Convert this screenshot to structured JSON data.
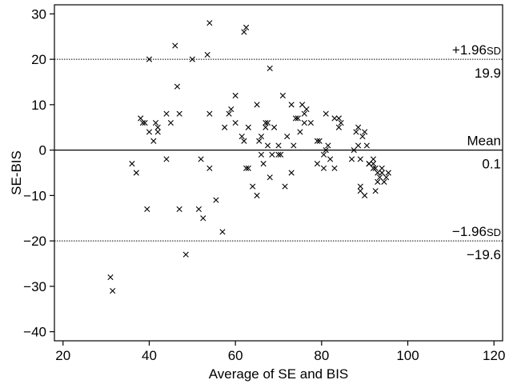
{
  "chart_data": {
    "type": "scatter",
    "title": "",
    "xlabel": "Average of SE and BIS",
    "ylabel": "SE-BIS",
    "xlim": [
      18,
      122
    ],
    "ylim": [
      -42,
      32
    ],
    "x_ticks": [
      20,
      40,
      60,
      80,
      100,
      120
    ],
    "y_ticks": [
      -40,
      -30,
      -20,
      -10,
      0,
      10,
      20,
      30
    ],
    "grid": false,
    "legend": "none",
    "marker": "x",
    "reference_lines": [
      {
        "name": "upper",
        "y": 20,
        "label_top": "+1.96",
        "label_top_suffix": "SD",
        "label_bottom": "19.9",
        "style": "dotted"
      },
      {
        "name": "mean",
        "y": 0,
        "label_top": "Mean",
        "label_top_suffix": "",
        "label_bottom": "0.1",
        "style": "solid"
      },
      {
        "name": "lower",
        "y": -20,
        "label_top": "−1.96",
        "label_top_suffix": "SD",
        "label_bottom": "−19.6",
        "style": "dotted"
      }
    ],
    "points": [
      [
        31,
        -28
      ],
      [
        31.5,
        -31
      ],
      [
        36,
        -3
      ],
      [
        37,
        -5
      ],
      [
        38,
        7
      ],
      [
        38.5,
        6
      ],
      [
        39,
        6
      ],
      [
        39.5,
        -13
      ],
      [
        40,
        20
      ],
      [
        40,
        4
      ],
      [
        41,
        2
      ],
      [
        41.5,
        6
      ],
      [
        42,
        4
      ],
      [
        42,
        5
      ],
      [
        44,
        8
      ],
      [
        44,
        -2
      ],
      [
        45,
        6
      ],
      [
        46,
        23
      ],
      [
        46.5,
        14
      ],
      [
        47,
        -13
      ],
      [
        47,
        8
      ],
      [
        48.5,
        -23
      ],
      [
        50,
        20
      ],
      [
        51.5,
        -13
      ],
      [
        52,
        -2
      ],
      [
        52.5,
        -15
      ],
      [
        53.5,
        21
      ],
      [
        54,
        28
      ],
      [
        54,
        8
      ],
      [
        54,
        -4
      ],
      [
        55.5,
        -11
      ],
      [
        57,
        -18
      ],
      [
        57.5,
        5
      ],
      [
        58.5,
        8
      ],
      [
        59,
        9
      ],
      [
        60,
        12
      ],
      [
        60,
        6
      ],
      [
        61.5,
        3
      ],
      [
        62,
        26
      ],
      [
        62,
        2
      ],
      [
        62.5,
        27
      ],
      [
        62.5,
        -4
      ],
      [
        63,
        -4
      ],
      [
        63,
        5
      ],
      [
        64,
        -8
      ],
      [
        65,
        -10
      ],
      [
        65,
        10
      ],
      [
        65.5,
        2
      ],
      [
        66,
        3
      ],
      [
        66,
        -1
      ],
      [
        66.5,
        -3
      ],
      [
        67,
        6
      ],
      [
        67,
        5
      ],
      [
        67.5,
        6
      ],
      [
        67.5,
        1
      ],
      [
        68,
        18
      ],
      [
        68,
        -6
      ],
      [
        68.5,
        -1
      ],
      [
        69,
        5
      ],
      [
        70,
        -1
      ],
      [
        70,
        1
      ],
      [
        70.5,
        -1
      ],
      [
        71,
        12
      ],
      [
        71.5,
        -8
      ],
      [
        72,
        3
      ],
      [
        73,
        -5
      ],
      [
        73,
        10
      ],
      [
        73.5,
        1
      ],
      [
        74,
        7
      ],
      [
        74.5,
        7
      ],
      [
        75,
        4
      ],
      [
        75.5,
        10
      ],
      [
        76,
        8
      ],
      [
        76,
        6
      ],
      [
        76.5,
        9
      ],
      [
        77.5,
        6
      ],
      [
        79,
        -3
      ],
      [
        79,
        2
      ],
      [
        79.5,
        2
      ],
      [
        80.5,
        -4
      ],
      [
        80.5,
        -1
      ],
      [
        81,
        0
      ],
      [
        81,
        8
      ],
      [
        81.5,
        1
      ],
      [
        82,
        -2
      ],
      [
        83,
        -4
      ],
      [
        83,
        7
      ],
      [
        84,
        7
      ],
      [
        84,
        5
      ],
      [
        84.5,
        6
      ],
      [
        87,
        -2
      ],
      [
        87.5,
        0
      ],
      [
        88,
        4
      ],
      [
        88.5,
        1
      ],
      [
        88.5,
        5
      ],
      [
        89,
        -9
      ],
      [
        89,
        -8
      ],
      [
        89,
        -2
      ],
      [
        89.5,
        3
      ],
      [
        90,
        4
      ],
      [
        90,
        -10
      ],
      [
        90.5,
        1
      ],
      [
        91,
        -3
      ],
      [
        91,
        -3
      ],
      [
        92,
        -4
      ],
      [
        92,
        -2
      ],
      [
        92.5,
        -4
      ],
      [
        92.5,
        -9
      ],
      [
        93,
        -5
      ],
      [
        93,
        -7
      ],
      [
        93.5,
        -6
      ],
      [
        94,
        -4
      ],
      [
        94.5,
        -7
      ],
      [
        95,
        -6
      ],
      [
        95.5,
        -5
      ],
      [
        94,
        -5
      ],
      [
        92,
        -3
      ]
    ]
  }
}
